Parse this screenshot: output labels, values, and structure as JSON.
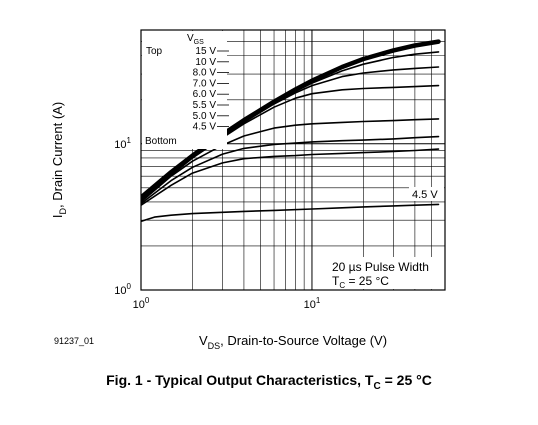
{
  "caption": {
    "prefix": "Fig. 1 - Typical Output Characteristics, T",
    "sub": "C",
    "suffix": " = 25 °C"
  },
  "figure_id": "91237_01",
  "chart_data": {
    "type": "line",
    "x_scale": "log",
    "y_scale": "log",
    "xlim": [
      1,
      60
    ],
    "ylim": [
      1,
      60
    ],
    "grid": true,
    "x_ticks": [
      {
        "value": 1,
        "base": "10",
        "exp": "0"
      },
      {
        "value": 10,
        "base": "10",
        "exp": "1"
      }
    ],
    "y_ticks": [
      {
        "value": 1,
        "base": "10",
        "exp": "0"
      },
      {
        "value": 10,
        "base": "10",
        "exp": "1"
      }
    ],
    "xlabel": {
      "main": "V",
      "sub": "DS",
      "rest": ", Drain-to-Source Voltage (V)"
    },
    "ylabel": {
      "main": "I",
      "sub": "D",
      "rest": ", Drain Current (A)"
    },
    "legend": {
      "header": {
        "main": "V",
        "sub": "GS"
      },
      "top_label": "Top",
      "bottom_label": "Bottom",
      "entries": [
        "15 V",
        "10 V",
        "8.0 V",
        "7.0 V",
        "6.0 V",
        "5.5 V",
        "5.0 V",
        "4.5 V"
      ]
    },
    "annotations": {
      "pulse": "20 µs Pulse Width",
      "tc_main": "T",
      "tc_sub": "C",
      "tc_rest": " = 25 °C",
      "curve_label": "4.5 V"
    },
    "series": [
      {
        "name": "15 V",
        "x": [
          1,
          1.5,
          2,
          3,
          4,
          6,
          8,
          10,
          15,
          20,
          30,
          40,
          55
        ],
        "y": [
          4.3,
          6.4,
          8.3,
          11.6,
          14.5,
          19.4,
          23.5,
          27,
          33.5,
          38,
          43.5,
          47,
          50
        ]
      },
      {
        "name": "10 V",
        "x": [
          1,
          1.5,
          2,
          3,
          4,
          6,
          8,
          10,
          15,
          20,
          30,
          40,
          55
        ],
        "y": [
          4.2,
          6.3,
          8.2,
          11.4,
          14.2,
          19,
          22.8,
          26,
          31.5,
          35,
          39,
          41,
          42.5
        ]
      },
      {
        "name": "8.0 V",
        "x": [
          1,
          1.5,
          2,
          3,
          4,
          6,
          8,
          10,
          15,
          20,
          30,
          40,
          55
        ],
        "y": [
          4.2,
          6.2,
          8.1,
          11.2,
          14,
          18.7,
          22.3,
          25,
          28.8,
          30.5,
          32,
          32.8,
          33.5
        ]
      },
      {
        "name": "7.0 V",
        "x": [
          1,
          1.5,
          2,
          3,
          4,
          6,
          8,
          10,
          15,
          20,
          30,
          40,
          55
        ],
        "y": [
          4.1,
          6.1,
          8,
          11,
          13.7,
          17.8,
          20.5,
          22,
          23.4,
          23.9,
          24.3,
          24.6,
          25
        ]
      },
      {
        "name": "6.0 V",
        "x": [
          1,
          1.5,
          2,
          3,
          4,
          6,
          8,
          10,
          15,
          20,
          30,
          40,
          55
        ],
        "y": [
          4.0,
          6.0,
          7.6,
          9.8,
          11.3,
          12.8,
          13.4,
          13.7,
          14,
          14.2,
          14.4,
          14.6,
          14.8
        ]
      },
      {
        "name": "5.5 V",
        "x": [
          1,
          1.5,
          2,
          3,
          4,
          6,
          8,
          10,
          15,
          20,
          30,
          40,
          55
        ],
        "y": [
          3.9,
          5.6,
          6.9,
          8.5,
          9.3,
          9.9,
          10.1,
          10.3,
          10.5,
          10.6,
          10.8,
          11,
          11.2
        ]
      },
      {
        "name": "5.0 V",
        "x": [
          1,
          1.5,
          2,
          3,
          4,
          6,
          8,
          10,
          15,
          20,
          30,
          40,
          55
        ],
        "y": [
          3.8,
          5.2,
          6.3,
          7.4,
          7.9,
          8.2,
          8.3,
          8.45,
          8.6,
          8.7,
          8.85,
          9,
          9.2
        ]
      },
      {
        "name": "4.5 V",
        "x": [
          1,
          1.2,
          1.5,
          2,
          3,
          4,
          6,
          10,
          15,
          20,
          30,
          40,
          55
        ],
        "y": [
          2.95,
          3.15,
          3.25,
          3.33,
          3.4,
          3.45,
          3.5,
          3.58,
          3.65,
          3.7,
          3.76,
          3.8,
          3.85
        ]
      }
    ]
  }
}
